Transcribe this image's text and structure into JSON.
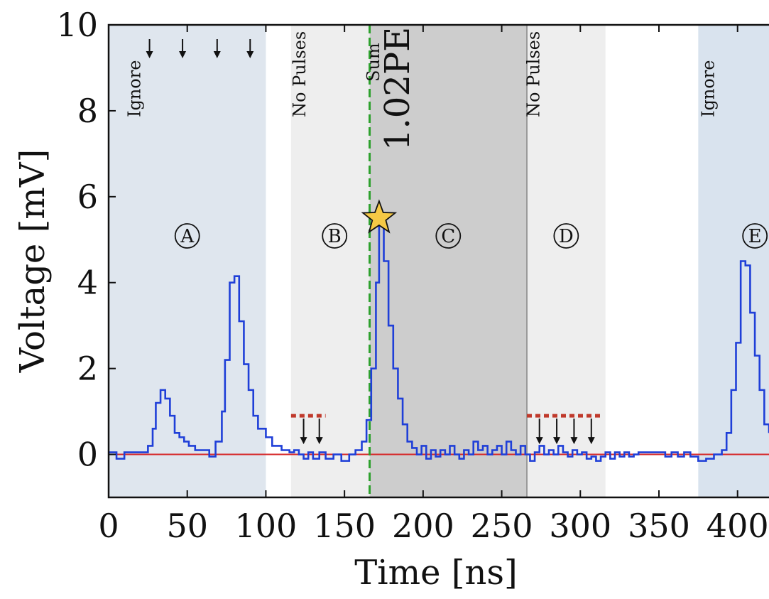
{
  "chart_data": {
    "type": "line",
    "xlabel": "Time [ns]",
    "ylabel": "Voltage [mV]",
    "xlim": [
      0,
      420
    ],
    "ylim": [
      -1,
      10
    ],
    "xticks": [
      "0",
      "50",
      "100",
      "150",
      "200",
      "250",
      "300",
      "350",
      "400"
    ],
    "xtick_values": [
      0,
      50,
      100,
      150,
      200,
      250,
      300,
      350,
      400
    ],
    "yticks": [
      "0",
      "2",
      "4",
      "6",
      "8",
      "10"
    ],
    "ytick_values": [
      0,
      2,
      4,
      6,
      8,
      10
    ],
    "grid": false,
    "baseline": {
      "y": 0,
      "color": "#d62728"
    },
    "trigger_line": {
      "x": 166,
      "color": "#2ca02c",
      "style": "dashed"
    },
    "regions": [
      {
        "id": "A",
        "x_start": 0,
        "x_end": 100,
        "fill": "#dfe6ee",
        "text": "Ignore",
        "marker": "A",
        "arrows_at": [
          26,
          47,
          69,
          90
        ]
      },
      {
        "id": "B",
        "x_start": 116,
        "x_end": 166,
        "fill": "#eeeeee",
        "text": "No Pulses",
        "marker": "B",
        "threshold": {
          "x_start": 116,
          "x_end": 138,
          "y": 0.9
        },
        "arrows_at": [
          124,
          134
        ]
      },
      {
        "id": "C",
        "x_start": 166,
        "x_end": 266,
        "fill": "#cdcdcd",
        "text": "Sum",
        "value_text": "1.02PE",
        "marker": "C"
      },
      {
        "id": "D",
        "x_start": 266,
        "x_end": 316,
        "fill": "#eeeeee",
        "text": "No Pulses",
        "marker": "D",
        "threshold": {
          "x_start": 266,
          "x_end": 313,
          "y": 0.9
        },
        "arrows_at": [
          274,
          285,
          296,
          307
        ]
      },
      {
        "id": "E",
        "x_start": 375,
        "x_end": 420,
        "fill": "#d9e3ee",
        "text": "Ignore",
        "marker": "E"
      }
    ],
    "peak_marker": {
      "x": 172,
      "y": 5.5,
      "shape": "star",
      "color": "#f6c945"
    },
    "series": [
      {
        "color": "#1f3fd8",
        "step": [
          [
            0,
            0.05
          ],
          [
            5,
            -0.1
          ],
          [
            10,
            0.05
          ],
          [
            20,
            0.05
          ],
          [
            25,
            0.2
          ],
          [
            28,
            0.6
          ],
          [
            30,
            1.2
          ],
          [
            33,
            1.5
          ],
          [
            36,
            1.3
          ],
          [
            39,
            0.9
          ],
          [
            42,
            0.5
          ],
          [
            45,
            0.4
          ],
          [
            48,
            0.3
          ],
          [
            51,
            0.2
          ],
          [
            55,
            0.1
          ],
          [
            60,
            0.1
          ],
          [
            64,
            -0.05
          ],
          [
            68,
            0.3
          ],
          [
            72,
            1.0
          ],
          [
            74,
            2.2
          ],
          [
            77,
            4.0
          ],
          [
            80,
            4.15
          ],
          [
            83,
            3.1
          ],
          [
            86,
            2.1
          ],
          [
            89,
            1.5
          ],
          [
            92,
            0.9
          ],
          [
            95,
            0.6
          ],
          [
            100,
            0.4
          ],
          [
            104,
            0.2
          ],
          [
            110,
            0.1
          ],
          [
            115,
            0.05
          ],
          [
            118,
            0.1
          ],
          [
            121,
            0.0
          ],
          [
            124,
            -0.1
          ],
          [
            127,
            0.05
          ],
          [
            130,
            -0.1
          ],
          [
            134,
            0.05
          ],
          [
            138,
            -0.1
          ],
          [
            143,
            0.0
          ],
          [
            148,
            -0.15
          ],
          [
            153,
            0.0
          ],
          [
            157,
            0.1
          ],
          [
            161,
            0.3
          ],
          [
            164,
            0.8
          ],
          [
            167,
            2.0
          ],
          [
            170,
            4.0
          ],
          [
            172,
            5.4
          ],
          [
            175,
            4.5
          ],
          [
            178,
            3.0
          ],
          [
            181,
            2.0
          ],
          [
            184,
            1.3
          ],
          [
            187,
            0.7
          ],
          [
            190,
            0.3
          ],
          [
            193,
            0.15
          ],
          [
            196,
            0.0
          ],
          [
            199,
            0.2
          ],
          [
            202,
            -0.1
          ],
          [
            205,
            0.1
          ],
          [
            208,
            -0.05
          ],
          [
            211,
            0.1
          ],
          [
            214,
            0.0
          ],
          [
            217,
            0.2
          ],
          [
            220,
            0.0
          ],
          [
            223,
            -0.1
          ],
          [
            226,
            0.1
          ],
          [
            229,
            0.0
          ],
          [
            232,
            0.3
          ],
          [
            235,
            0.1
          ],
          [
            238,
            0.2
          ],
          [
            241,
            0.0
          ],
          [
            244,
            0.1
          ],
          [
            247,
            0.2
          ],
          [
            250,
            0.0
          ],
          [
            253,
            0.3
          ],
          [
            256,
            0.1
          ],
          [
            259,
            0.0
          ],
          [
            262,
            0.2
          ],
          [
            265,
            0.0
          ],
          [
            268,
            -0.15
          ],
          [
            271,
            0.05
          ],
          [
            274,
            0.2
          ],
          [
            277,
            0.0
          ],
          [
            280,
            0.1
          ],
          [
            283,
            0.0
          ],
          [
            286,
            0.2
          ],
          [
            289,
            0.05
          ],
          [
            292,
            -0.05
          ],
          [
            295,
            0.1
          ],
          [
            298,
            0.0
          ],
          [
            301,
            0.05
          ],
          [
            304,
            -0.1
          ],
          [
            307,
            -0.05
          ],
          [
            310,
            -0.15
          ],
          [
            313,
            -0.05
          ],
          [
            316,
            0.05
          ],
          [
            319,
            -0.1
          ],
          [
            322,
            0.05
          ],
          [
            325,
            -0.05
          ],
          [
            328,
            0.05
          ],
          [
            331,
            -0.05
          ],
          [
            334,
            0.0
          ],
          [
            337,
            0.05
          ],
          [
            342,
            0.05
          ],
          [
            348,
            0.05
          ],
          [
            354,
            -0.05
          ],
          [
            358,
            0.05
          ],
          [
            362,
            -0.05
          ],
          [
            366,
            0.05
          ],
          [
            370,
            -0.05
          ],
          [
            375,
            -0.15
          ],
          [
            380,
            -0.1
          ],
          [
            385,
            0.0
          ],
          [
            390,
            0.1
          ],
          [
            393,
            0.5
          ],
          [
            396,
            1.5
          ],
          [
            399,
            2.6
          ],
          [
            402,
            4.5
          ],
          [
            405,
            4.4
          ],
          [
            408,
            3.3
          ],
          [
            411,
            2.3
          ],
          [
            414,
            1.5
          ],
          [
            417,
            0.7
          ],
          [
            420,
            0.5
          ]
        ]
      }
    ]
  }
}
